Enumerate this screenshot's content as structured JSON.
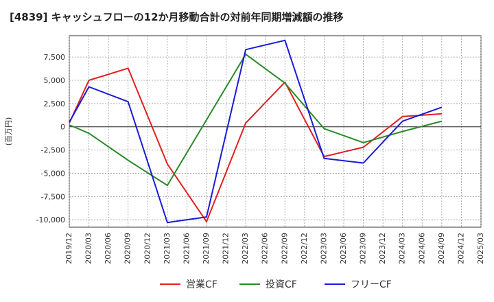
{
  "chart_data": {
    "type": "line",
    "title": "[4839]  キャッシュフローの12か月移動合計の対前年同期増減額の推移",
    "ylabel": "(百万円)",
    "xlabel": "",
    "ylim": [
      -10800,
      9800
    ],
    "yticks": [
      -10000,
      -7500,
      -5000,
      -2500,
      0,
      2500,
      5000,
      7500
    ],
    "ytick_labels": [
      "-10,000",
      "-7,500",
      "-5,000",
      "-2,500",
      "0",
      "2,500",
      "5,000",
      "7,500"
    ],
    "categories": [
      "2019/12",
      "2020/03",
      "2020/06",
      "2020/09",
      "2020/12",
      "2021/03",
      "2021/06",
      "2021/09",
      "2021/12",
      "2022/03",
      "2022/06",
      "2022/09",
      "2022/12",
      "2023/03",
      "2023/06",
      "2023/09",
      "2023/12",
      "2024/03",
      "2024/06",
      "2024/09",
      "2024/12",
      "2025/03"
    ],
    "grid": true,
    "legend_position": "bottom",
    "series": [
      {
        "name": "営業CF",
        "color": "#e02020",
        "values": [
          400,
          5000,
          null,
          6300,
          null,
          -4000,
          null,
          -10200,
          null,
          400,
          null,
          4800,
          null,
          -3200,
          null,
          -2200,
          null,
          1100,
          null,
          1400,
          null,
          null
        ]
      },
      {
        "name": "投資CF",
        "color": "#2a8a2a",
        "values": [
          200,
          -700,
          null,
          -3600,
          null,
          -6300,
          null,
          null,
          null,
          7800,
          null,
          4700,
          null,
          -200,
          null,
          -1700,
          null,
          -500,
          null,
          600,
          null,
          null
        ]
      },
      {
        "name": "フリーCF",
        "color": "#1a1ad8",
        "values": [
          500,
          4300,
          null,
          2700,
          null,
          -10300,
          null,
          -9700,
          null,
          8300,
          null,
          9300,
          null,
          -3400,
          null,
          -3900,
          null,
          600,
          null,
          2100,
          null,
          null
        ]
      }
    ]
  }
}
